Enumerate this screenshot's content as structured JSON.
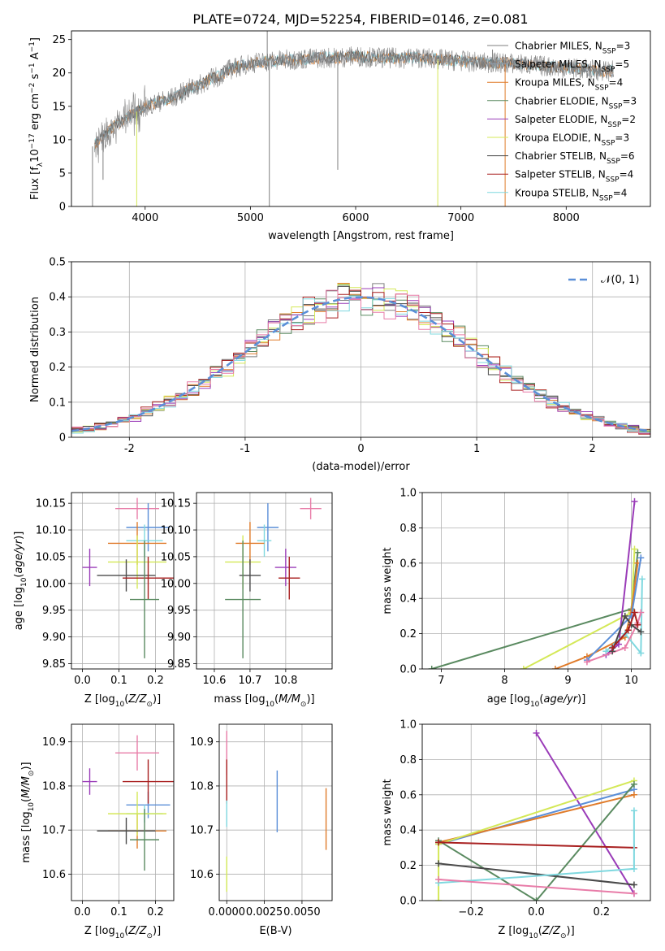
{
  "figure_title": "PLATE=0724, MJD=52254, FIBERID=0146, z=0.081",
  "chart_data": [
    {
      "id": "spectrum",
      "type": "line",
      "title": "PLATE=0724, MJD=52254, FIBERID=0146, z=0.081",
      "xlabel": "wavelength [Angstrom, rest frame]",
      "ylabel": "Flux [f_λ10^-17 erg cm^-2 s^-1 A^-1]",
      "xlim": [
        3300,
        8800
      ],
      "ylim": [
        0,
        26.3
      ],
      "xticks": [
        4000,
        5000,
        6000,
        7000,
        8000
      ],
      "yticks": [
        0,
        5,
        10,
        15,
        20,
        25
      ],
      "grid": false,
      "legend_position": "right",
      "series": [
        {
          "name": "Chabrier MILES, N_SSP=3",
          "color": "#7f7f7f"
        },
        {
          "name": "Salpeter MILES, N_SSP=5",
          "color": "#8e9aa8"
        },
        {
          "name": "Kroupa MILES, N_SSP=4",
          "color": "#e07b2a"
        },
        {
          "name": "Chabrier ELODIE, N_SSP=3",
          "color": "#5a8a60"
        },
        {
          "name": "Salpeter ELODIE, N_SSP=2",
          "color": "#9a3bb8"
        },
        {
          "name": "Kroupa ELODIE, N_SSP=3",
          "color": "#d4e857"
        },
        {
          "name": "Chabrier STELIB, N_SSP=6",
          "color": "#4a4a4a"
        },
        {
          "name": "Salpeter STELIB, N_SSP=4",
          "color": "#a81f1f"
        },
        {
          "name": "Kroupa STELIB, N_SSP=4",
          "color": "#7fd8df"
        }
      ],
      "continuum": {
        "x": [
          3500,
          3600,
          3700,
          3800,
          3900,
          4000,
          4100,
          4200,
          4300,
          4400,
          4500,
          4600,
          4700,
          4800,
          4900,
          5000,
          5200,
          5400,
          5600,
          5800,
          6000,
          6200,
          6400,
          6600,
          6800,
          7000,
          7200,
          7400,
          7600,
          7800,
          8000,
          8200,
          8400
        ],
        "y": [
          9,
          10.5,
          12,
          13,
          14,
          15,
          15.5,
          16,
          16.5,
          17.5,
          18,
          19,
          19.5,
          20.5,
          21,
          21.5,
          21.8,
          22,
          22.2,
          22.3,
          22.5,
          22.3,
          22.2,
          22.3,
          22,
          21.8,
          21.5,
          21.5,
          21.3,
          21,
          20.8,
          20.5,
          20.3
        ]
      },
      "spikes": [
        {
          "x": 3500,
          "y": 0
        },
        {
          "x": 3600,
          "y": 4
        },
        {
          "x": 3920,
          "y": 0
        },
        {
          "x": 5160,
          "y": 26.3
        },
        {
          "x": 5180,
          "y": 0
        },
        {
          "x": 5830,
          "y": 5.5
        },
        {
          "x": 6780,
          "y": 0
        },
        {
          "x": 7300,
          "y": 23.5
        },
        {
          "x": 7420,
          "y": 0
        }
      ]
    },
    {
      "id": "residuals",
      "type": "line",
      "xlabel": "(data-model)/error",
      "ylabel": "Normed distribution",
      "xlim": [
        -2.5,
        2.5
      ],
      "ylim": [
        0,
        0.5
      ],
      "xticks": [
        -2,
        -1,
        0,
        1,
        2
      ],
      "yticks": [
        0,
        0.1,
        0.2,
        0.3,
        0.4,
        0.5
      ],
      "grid": true,
      "legend_position": "top-right",
      "reference_curve": {
        "name": "𝒩(0, 1)",
        "color": "#5b8fd8",
        "mean": 0,
        "sd": 1
      },
      "series_colors": [
        "#7f7f7f",
        "#e07b2a",
        "#5a8a60",
        "#9a3bb8",
        "#d4e857",
        "#4a4a4a",
        "#a81f1f",
        "#7fd8df",
        "#e87ca8"
      ],
      "bin_width": 0.1
    },
    {
      "id": "age_vs_Z",
      "type": "scatter",
      "xlabel": "Z [log10(Z/Z⊙)]",
      "ylabel": "age  [log10(age/yr)]",
      "xlim": [
        -0.03,
        0.25
      ],
      "ylim": [
        9.84,
        10.17
      ],
      "xticks": [
        0.0,
        0.1,
        0.2
      ],
      "xtick_labels": [
        "0.0",
        "0.1",
        "0.2"
      ],
      "yticks": [
        9.85,
        9.9,
        9.95,
        10.0,
        10.05,
        10.1,
        10.15
      ],
      "ytick_labels": [
        "9.85",
        "9.90",
        "9.95",
        "10.00",
        "10.05",
        "10.10",
        "10.15"
      ],
      "grid": true,
      "points": [
        {
          "x": 0.15,
          "xerr": 0.06,
          "y": 10.14,
          "yerr": 0.02,
          "color": "#e87ca8"
        },
        {
          "x": 0.18,
          "xerr": 0.06,
          "y": 10.105,
          "yerr": 0.045,
          "color": "#5b8fd8"
        },
        {
          "x": 0.17,
          "xerr": 0.05,
          "y": 10.08,
          "yerr": 0.03,
          "color": "#7fd8df"
        },
        {
          "x": 0.15,
          "xerr": 0.08,
          "y": 10.075,
          "yerr": 0.04,
          "color": "#e07b2a"
        },
        {
          "x": 0.15,
          "xerr": 0.08,
          "y": 10.04,
          "yerr": 0.05,
          "color": "#d4e857"
        },
        {
          "x": 0.02,
          "xerr": 0.02,
          "y": 10.03,
          "yerr": 0.035,
          "color": "#9a3bb8"
        },
        {
          "x": 0.12,
          "xerr": 0.08,
          "y": 10.015,
          "yerr": 0.03,
          "color": "#4a4a4a"
        },
        {
          "x": 0.18,
          "xerr": 0.07,
          "y": 10.01,
          "yerr": 0.04,
          "color": "#a81f1f"
        },
        {
          "x": 0.17,
          "xerr": 0.04,
          "y": 9.97,
          "yerr": 0.11,
          "color": "#5a8a60"
        }
      ]
    },
    {
      "id": "age_vs_mass",
      "type": "scatter",
      "xlabel": "mass [log10(M/M⊙)]",
      "ylabel": "",
      "xlim": [
        10.55,
        10.93
      ],
      "ylim": [
        9.84,
        10.17
      ],
      "xticks": [
        10.6,
        10.7,
        10.8
      ],
      "xtick_labels": [
        "10.6",
        "10.7",
        "10.8"
      ],
      "yticks": [
        9.85,
        9.9,
        9.95,
        10.0,
        10.05,
        10.1,
        10.15
      ],
      "ytick_labels": [
        "9.85",
        "9.90",
        "9.95",
        "10.00",
        "10.05",
        "10.10",
        "10.15"
      ],
      "grid": true,
      "points": [
        {
          "x": 10.87,
          "xerr": 0.03,
          "y": 10.14,
          "yerr": 0.02,
          "color": "#e87ca8"
        },
        {
          "x": 10.75,
          "xerr": 0.03,
          "y": 10.105,
          "yerr": 0.045,
          "color": "#5b8fd8"
        },
        {
          "x": 10.74,
          "xerr": 0.02,
          "y": 10.08,
          "yerr": 0.03,
          "color": "#7fd8df"
        },
        {
          "x": 10.7,
          "xerr": 0.04,
          "y": 10.075,
          "yerr": 0.04,
          "color": "#e07b2a"
        },
        {
          "x": 10.68,
          "xerr": 0.05,
          "y": 10.04,
          "yerr": 0.05,
          "color": "#d4e857"
        },
        {
          "x": 10.8,
          "xerr": 0.03,
          "y": 10.03,
          "yerr": 0.035,
          "color": "#9a3bb8"
        },
        {
          "x": 10.7,
          "xerr": 0.03,
          "y": 10.015,
          "yerr": 0.03,
          "color": "#4a4a4a"
        },
        {
          "x": 10.81,
          "xerr": 0.03,
          "y": 10.01,
          "yerr": 0.04,
          "color": "#a81f1f"
        },
        {
          "x": 10.68,
          "xerr": 0.05,
          "y": 9.97,
          "yerr": 0.11,
          "color": "#5a8a60"
        }
      ]
    },
    {
      "id": "weight_vs_age",
      "type": "line",
      "xlabel": "age  [log10(age/yr)]",
      "ylabel": "mass weight",
      "xlim": [
        6.7,
        10.3
      ],
      "ylim": [
        0,
        1
      ],
      "xticks": [
        7,
        8,
        9,
        10
      ],
      "yticks": [
        0,
        0.2,
        0.4,
        0.6,
        0.8,
        1.0
      ],
      "ytick_labels": [
        "0.0",
        "0.2",
        "0.4",
        "0.6",
        "0.8",
        "1.0"
      ],
      "grid": true,
      "series": [
        {
          "color": "#5a8a60",
          "x": [
            6.85,
            10.0,
            10.1
          ],
          "y": [
            0.0,
            0.34,
            0.66
          ]
        },
        {
          "color": "#d4e857",
          "x": [
            8.3,
            10.0,
            10.05
          ],
          "y": [
            0.0,
            0.32,
            0.68
          ]
        },
        {
          "color": "#e07b2a",
          "x": [
            8.8,
            9.3,
            9.9,
            10.0,
            10.1
          ],
          "y": [
            0.0,
            0.07,
            0.18,
            0.33,
            0.6
          ]
        },
        {
          "color": "#5b8fd8",
          "x": [
            9.3,
            10.0,
            10.15
          ],
          "y": [
            0.05,
            0.3,
            0.63
          ]
        },
        {
          "color": "#9a3bb8",
          "x": [
            9.6,
            9.8,
            10.05
          ],
          "y": [
            0.08,
            0.14,
            0.95
          ]
        },
        {
          "color": "#7fd8df",
          "x": [
            9.6,
            9.9,
            10.15,
            10.17
          ],
          "y": [
            0.1,
            0.2,
            0.09,
            0.51
          ]
        },
        {
          "color": "#e87ca8",
          "x": [
            9.3,
            9.9,
            10.1,
            10.15
          ],
          "y": [
            0.04,
            0.12,
            0.26,
            0.32
          ]
        },
        {
          "color": "#4a4a4a",
          "x": [
            9.7,
            9.9,
            10.0,
            10.15
          ],
          "y": [
            0.1,
            0.3,
            0.25,
            0.21
          ]
        },
        {
          "color": "#a81f1f",
          "x": [
            9.7,
            9.95,
            10.05,
            10.1
          ],
          "y": [
            0.12,
            0.22,
            0.32,
            0.25
          ]
        }
      ]
    },
    {
      "id": "mass_vs_Z",
      "type": "scatter",
      "xlabel": "Z [log10(Z/Z⊙)]",
      "ylabel": "mass [log10(M/M⊙)]",
      "xlim": [
        -0.03,
        0.25
      ],
      "ylim": [
        10.54,
        10.94
      ],
      "xticks": [
        0.0,
        0.1,
        0.2
      ],
      "xtick_labels": [
        "0.0",
        "0.1",
        "0.2"
      ],
      "yticks": [
        10.6,
        10.7,
        10.8,
        10.9
      ],
      "ytick_labels": [
        "10.6",
        "10.7",
        "10.8",
        "10.9"
      ],
      "grid": true,
      "points": [
        {
          "x": 0.15,
          "xerr": 0.06,
          "y": 10.875,
          "yerr": 0.04,
          "color": "#e87ca8"
        },
        {
          "x": 0.18,
          "xerr": 0.06,
          "y": 10.757,
          "yerr": 0.03,
          "color": "#5b8fd8"
        },
        {
          "x": 0.17,
          "xerr": 0.05,
          "y": 10.737,
          "yerr": 0.02,
          "color": "#7fd8df"
        },
        {
          "x": 0.15,
          "xerr": 0.08,
          "y": 10.698,
          "yerr": 0.04,
          "color": "#e07b2a"
        },
        {
          "x": 0.15,
          "xerr": 0.08,
          "y": 10.737,
          "yerr": 0.05,
          "color": "#d4e857"
        },
        {
          "x": 0.02,
          "xerr": 0.02,
          "y": 10.81,
          "yerr": 0.03,
          "color": "#9a3bb8"
        },
        {
          "x": 0.12,
          "xerr": 0.08,
          "y": 10.698,
          "yerr": 0.03,
          "color": "#4a4a4a"
        },
        {
          "x": 0.18,
          "xerr": 0.07,
          "y": 10.81,
          "yerr": 0.05,
          "color": "#a81f1f"
        },
        {
          "x": 0.17,
          "xerr": 0.04,
          "y": 10.678,
          "yerr": 0.07,
          "color": "#5a8a60"
        }
      ]
    },
    {
      "id": "mass_vs_EBV",
      "type": "scatter",
      "xlabel": "E(B-V)",
      "ylabel": "",
      "xlim": [
        -0.0005,
        0.007
      ],
      "ylim": [
        10.54,
        10.94
      ],
      "xticks": [
        0.0,
        0.0025,
        0.005
      ],
      "xtick_labels": [
        "0.0000",
        "0.0025",
        "0.0050"
      ],
      "yticks": [
        10.6,
        10.7,
        10.8,
        10.9
      ],
      "ytick_labels": [
        "10.6",
        "10.7",
        "10.8",
        "10.9"
      ],
      "grid": true,
      "points": [
        {
          "x": 0.0,
          "xerr": 0,
          "y": 10.875,
          "yerr": 0.05,
          "color": "#e87ca8"
        },
        {
          "x": 0.0,
          "xerr": 0,
          "y": 10.81,
          "yerr": 0.05,
          "color": "#a81f1f"
        },
        {
          "x": 0.0,
          "xerr": 0,
          "y": 10.737,
          "yerr": 0.03,
          "color": "#7fd8df"
        },
        {
          "x": 0.0,
          "xerr": 0,
          "y": 10.6,
          "yerr": 0.04,
          "color": "#d4e857"
        },
        {
          "x": 0.00335,
          "xerr": 0,
          "y": 10.765,
          "yerr": 0.07,
          "color": "#5b8fd8"
        },
        {
          "x": 0.0066,
          "xerr": 0,
          "y": 10.725,
          "yerr": 0.07,
          "color": "#e07b2a"
        }
      ]
    },
    {
      "id": "weight_vs_Z",
      "type": "line",
      "xlabel": "Z [log10(Z/Z⊙)]",
      "ylabel": "mass weight",
      "xlim": [
        -0.35,
        0.35
      ],
      "ylim": [
        0,
        1
      ],
      "xticks": [
        -0.2,
        0.0,
        0.2
      ],
      "xtick_labels": [
        "−0.2",
        "0.0",
        "0.2"
      ],
      "yticks": [
        0,
        0.2,
        0.4,
        0.6,
        0.8,
        1.0
      ],
      "ytick_labels": [
        "0.0",
        "0.2",
        "0.4",
        "0.6",
        "0.8",
        "1.0"
      ],
      "grid": true,
      "series": [
        {
          "color": "#9a3bb8",
          "x": [
            0.0,
            0.3
          ],
          "y": [
            0.95,
            0.04
          ]
        },
        {
          "color": "#5b8fd8",
          "x": [
            -0.3,
            0.3
          ],
          "y": [
            0.32,
            0.63
          ]
        },
        {
          "color": "#e07b2a",
          "x": [
            -0.3,
            0.3
          ],
          "y": [
            0.33,
            0.6
          ]
        },
        {
          "color": "#d4e857",
          "x": [
            -0.3,
            -0.3,
            0.3
          ],
          "y": [
            0.0,
            0.32,
            0.68
          ]
        },
        {
          "color": "#5a8a60",
          "x": [
            -0.3,
            0.0,
            0.3
          ],
          "y": [
            0.34,
            0.0,
            0.66
          ]
        },
        {
          "color": "#a81f1f",
          "x": [
            -0.3,
            0.3
          ],
          "y": [
            0.33,
            0.3
          ]
        },
        {
          "color": "#4a4a4a",
          "x": [
            -0.3,
            0.3
          ],
          "y": [
            0.21,
            0.09
          ]
        },
        {
          "color": "#7fd8df",
          "x": [
            -0.3,
            0.3,
            0.3
          ],
          "y": [
            0.1,
            0.18,
            0.51
          ]
        },
        {
          "color": "#e87ca8",
          "x": [
            -0.3,
            0.3
          ],
          "y": [
            0.12,
            0.04
          ]
        }
      ]
    }
  ]
}
